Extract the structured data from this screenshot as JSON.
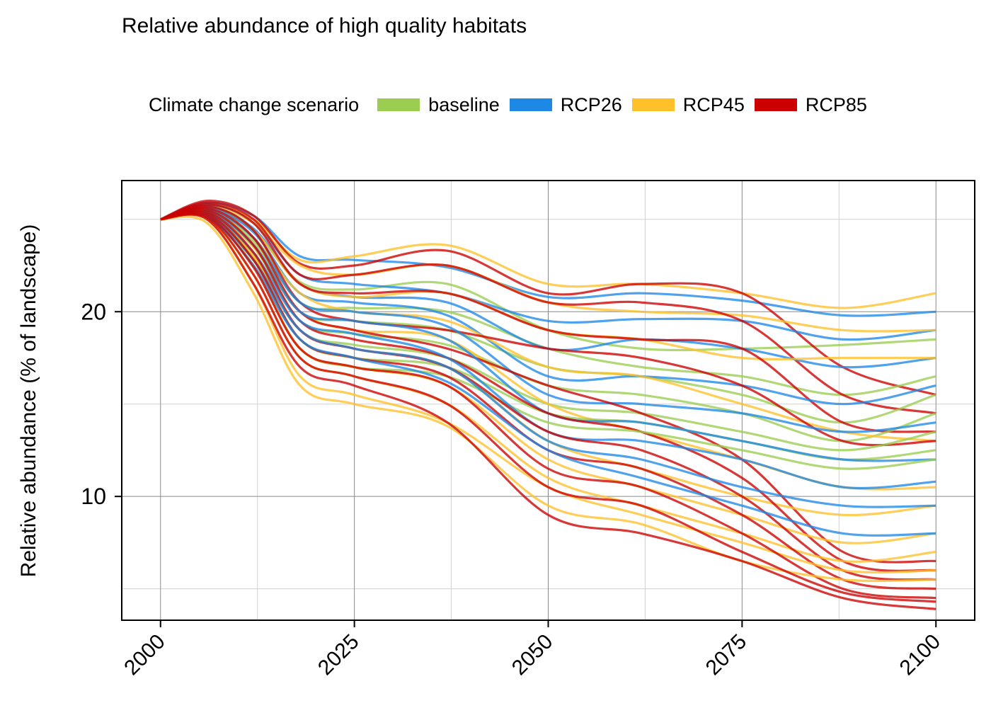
{
  "chart_data": {
    "type": "line",
    "title": "Relative abundance of high quality habitats",
    "xlabel": "",
    "ylabel": "Relative abundance (% of landscape)",
    "xlim": [
      1995,
      2105
    ],
    "ylim": [
      3.3,
      27.1
    ],
    "x_ticks": [
      "2000",
      "2025",
      "2050",
      "2075",
      "2100"
    ],
    "y_ticks": [
      "10",
      "20"
    ],
    "grid": true,
    "legend": {
      "title": "Climate change scenario",
      "position": "top",
      "entries": [
        "baseline",
        "RCP26",
        "RCP45",
        "RCP85"
      ]
    },
    "x": [
      2000,
      2006,
      2012,
      2018,
      2025,
      2037,
      2050,
      2062,
      2075,
      2088,
      2100
    ],
    "series_note_values": "Each scenario shows many simulation runs; values below are representative runs read from the plot.",
    "series": [
      {
        "name": "baseline",
        "color": "#9ACD50",
        "runs": [
          [
            25,
            25.6,
            24.4,
            21.6,
            21.2,
            21.5,
            19.0,
            18.0,
            18.0,
            18.2,
            18.5
          ],
          [
            25,
            25.5,
            24.0,
            20.5,
            20.2,
            20.0,
            18.0,
            17.0,
            16.5,
            15.5,
            16.5
          ],
          [
            25,
            25.4,
            23.8,
            20.0,
            19.5,
            19.0,
            17.0,
            16.5,
            15.5,
            14.0,
            15.5
          ],
          [
            25,
            25.3,
            23.5,
            19.5,
            18.8,
            18.2,
            16.0,
            15.5,
            14.5,
            13.0,
            14.5
          ],
          [
            25,
            25.2,
            23.0,
            19.0,
            18.2,
            17.5,
            15.0,
            14.5,
            13.5,
            12.5,
            13.5
          ],
          [
            25,
            25.2,
            22.8,
            18.5,
            17.5,
            17.0,
            14.5,
            14.0,
            13.0,
            12.0,
            12.5
          ],
          [
            25,
            25.1,
            22.5,
            18.0,
            17.0,
            16.5,
            14.0,
            13.5,
            12.5,
            11.5,
            12.0
          ]
        ]
      },
      {
        "name": "RCP26",
        "color": "#1E88E5",
        "runs": [
          [
            25,
            25.9,
            25.2,
            23.0,
            22.8,
            22.4,
            20.8,
            21.0,
            20.6,
            19.8,
            20.0
          ],
          [
            25,
            25.8,
            24.8,
            22.0,
            21.5,
            21.0,
            19.5,
            19.6,
            19.5,
            18.5,
            19.0
          ],
          [
            25,
            25.7,
            24.5,
            21.5,
            20.8,
            20.5,
            18.0,
            18.5,
            18.0,
            17.0,
            17.5
          ],
          [
            25,
            25.6,
            24.3,
            21.0,
            20.5,
            19.8,
            16.5,
            16.5,
            16.0,
            15.0,
            16.0
          ],
          [
            25,
            25.5,
            24.0,
            20.5,
            20.0,
            19.2,
            15.5,
            15.0,
            14.5,
            13.5,
            14.0
          ],
          [
            25,
            25.4,
            23.6,
            20.0,
            19.5,
            18.5,
            14.5,
            14.0,
            13.0,
            12.0,
            12.0
          ],
          [
            25,
            25.3,
            23.2,
            19.5,
            18.8,
            17.5,
            13.5,
            13.0,
            12.0,
            10.5,
            10.8
          ],
          [
            25,
            25.2,
            22.8,
            19.0,
            18.0,
            17.0,
            13.0,
            12.0,
            10.5,
            9.5,
            9.5
          ],
          [
            25,
            25.1,
            22.5,
            18.5,
            17.5,
            16.2,
            12.5,
            11.0,
            9.5,
            8.0,
            8.0
          ]
        ]
      },
      {
        "name": "RCP45",
        "color": "#FFC02A",
        "runs": [
          [
            25,
            25.8,
            25.0,
            22.8,
            23.0,
            23.6,
            21.5,
            21.5,
            21.0,
            20.2,
            21.0
          ],
          [
            25,
            25.7,
            24.8,
            22.5,
            22.0,
            22.5,
            20.5,
            20.0,
            19.8,
            19.0,
            19.0
          ],
          [
            25,
            25.6,
            24.4,
            21.5,
            20.8,
            21.0,
            19.0,
            18.5,
            17.5,
            17.5,
            17.5
          ],
          [
            25,
            25.5,
            24.0,
            21.0,
            20.0,
            19.5,
            17.0,
            16.5,
            15.0,
            13.5,
            13.0
          ],
          [
            25,
            25.4,
            23.5,
            20.0,
            19.0,
            18.5,
            15.0,
            13.5,
            12.0,
            10.5,
            10.5
          ],
          [
            25,
            25.3,
            23.0,
            19.0,
            18.0,
            17.0,
            13.0,
            11.5,
            10.0,
            9.0,
            9.5
          ],
          [
            25,
            25.2,
            22.5,
            18.0,
            17.0,
            16.0,
            12.0,
            10.5,
            9.0,
            7.5,
            8.0
          ],
          [
            25,
            25.1,
            22.0,
            17.5,
            16.5,
            15.0,
            11.0,
            9.5,
            8.0,
            6.5,
            7.0
          ],
          [
            25,
            25.0,
            21.5,
            16.5,
            15.5,
            14.0,
            10.5,
            9.0,
            7.5,
            6.0,
            6.0
          ],
          [
            25,
            24.8,
            21.0,
            16.0,
            15.0,
            13.8,
            9.5,
            8.5,
            6.5,
            5.5,
            5.5
          ]
        ]
      },
      {
        "name": "RCP85",
        "color": "#CC0000",
        "runs": [
          [
            25,
            26.0,
            25.2,
            22.6,
            22.5,
            23.3,
            21.0,
            21.5,
            21.0,
            17.0,
            15.5
          ],
          [
            25,
            25.9,
            25.0,
            22.0,
            22.0,
            22.5,
            20.5,
            20.5,
            19.5,
            15.5,
            14.5
          ],
          [
            25,
            25.8,
            24.8,
            21.5,
            21.0,
            21.0,
            19.0,
            18.5,
            18.0,
            14.0,
            13.5
          ],
          [
            25,
            25.7,
            24.4,
            20.5,
            19.5,
            19.0,
            18.0,
            17.5,
            16.0,
            13.0,
            13.0
          ],
          [
            25,
            25.6,
            24.0,
            20.0,
            19.0,
            18.0,
            16.0,
            14.5,
            12.0,
            7.0,
            6.5
          ],
          [
            25,
            25.5,
            23.6,
            19.5,
            18.5,
            17.5,
            14.5,
            13.5,
            11.0,
            6.5,
            6.0
          ],
          [
            25,
            25.4,
            23.2,
            19.0,
            18.0,
            17.0,
            13.5,
            12.5,
            10.0,
            6.0,
            5.5
          ],
          [
            25,
            25.3,
            22.8,
            18.5,
            17.5,
            16.5,
            12.5,
            11.5,
            9.0,
            5.5,
            5.0
          ],
          [
            25,
            25.2,
            22.4,
            18.0,
            17.0,
            16.0,
            11.5,
            10.5,
            8.0,
            5.0,
            4.5
          ],
          [
            25,
            25.1,
            22.0,
            17.5,
            16.5,
            15.0,
            10.5,
            9.5,
            7.0,
            4.8,
            4.3
          ],
          [
            25,
            25.0,
            21.5,
            17.0,
            16.0,
            14.0,
            9.0,
            8.0,
            6.5,
            4.5,
            3.9
          ]
        ]
      }
    ]
  }
}
